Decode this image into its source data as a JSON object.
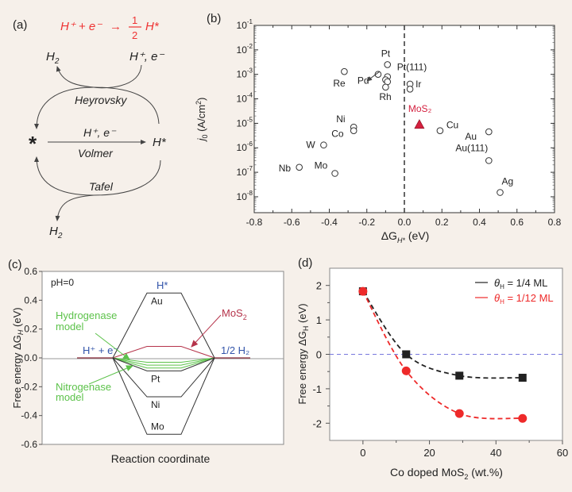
{
  "panel_labels": {
    "a": "(a)",
    "b": "(b)",
    "c": "(c)",
    "d": "(d)"
  },
  "panel_a": {
    "equation_left": "H⁺ + e⁻",
    "equation_arrow": "→",
    "equation_num": "1",
    "equation_den": "2",
    "equation_right": "H*",
    "h2_top": "H",
    "h2_top_sub": "2",
    "hplus_top": "H⁺, e⁻",
    "heyrovsky": "Heyrovsky",
    "star": "*",
    "volmer_reactant": "H⁺, e⁻",
    "volmer": "Volmer",
    "h_star": "H*",
    "tafel": "Tafel",
    "h2_bottom": "H",
    "h2_bottom_sub": "2",
    "colors": {
      "equation": "#ee3333",
      "lines": "#444444"
    }
  },
  "chart_data": [
    {
      "id": "b",
      "type": "scatter",
      "title": "",
      "xlabel": "ΔG_H* (eV)",
      "ylabel": "j0 (A/cm²)",
      "xlim": [
        -0.8,
        0.8
      ],
      "ylim_log10": [
        -8.65,
        -1
      ],
      "yscale": "log",
      "xticks": [
        -0.8,
        -0.6,
        -0.4,
        -0.2,
        0.0,
        0.2,
        0.4,
        0.6,
        0.8
      ],
      "xtick_labels": [
        "-0.8",
        "-0.6",
        "-0.4",
        "-0.2",
        "0.0",
        "0.2",
        "0.4",
        "0.6",
        "0.8"
      ],
      "yticks_exp": [
        -1,
        -2,
        -3,
        -4,
        -5,
        -6,
        -7,
        -8
      ],
      "vline_x": 0,
      "points": [
        {
          "label": "Nb",
          "x": -0.56,
          "y": 1.6e-07
        },
        {
          "label": "W",
          "x": -0.43,
          "y": 1.3e-06
        },
        {
          "label": "Mo",
          "x": -0.37,
          "y": 9e-08
        },
        {
          "label": "Re",
          "x": -0.32,
          "y": 0.0013
        },
        {
          "label": "Ni",
          "x": -0.27,
          "y": 7e-06
        },
        {
          "label": "Co",
          "x": -0.27,
          "y": 5e-06
        },
        {
          "label": "Pd",
          "x": -0.14,
          "y": 0.001
        },
        {
          "label": "Pt",
          "x": -0.09,
          "y": 0.0025
        },
        {
          "label": "Pt(111)",
          "x": -0.09,
          "y": 0.0008
        },
        {
          "label": "",
          "x": -0.1,
          "y": 0.0006
        },
        {
          "label": "",
          "x": -0.09,
          "y": 0.0005
        },
        {
          "label": "Rh",
          "x": -0.1,
          "y": 0.0003
        },
        {
          "label": "Ir",
          "x": 0.03,
          "y": 0.0004
        },
        {
          "label": "",
          "x": 0.03,
          "y": 0.00025
        },
        {
          "label": "Cu",
          "x": 0.19,
          "y": 5e-06
        },
        {
          "label": "Au",
          "x": 0.45,
          "y": 4.5e-06
        },
        {
          "label": "Au(111)",
          "x": 0.45,
          "y": 3e-07
        },
        {
          "label": "Ag",
          "x": 0.51,
          "y": 1.5e-08
        }
      ],
      "highlight": {
        "label": "MoS₂",
        "x": 0.08,
        "y": 9e-06,
        "marker": "triangle",
        "color": "#d4203f"
      }
    },
    {
      "id": "c",
      "type": "line",
      "title": "",
      "xlabel": "Reaction coordinate",
      "ylabel": "Free energy ΔG_H (eV)",
      "ylim": [
        -0.6,
        0.6
      ],
      "yticks": [
        0.6,
        0.4,
        0.2,
        0.0,
        -0.2,
        -0.4,
        -0.6
      ],
      "ytick_labels": [
        "0.6",
        "0.4",
        "0.2",
        "0.0",
        "-0.2",
        "-0.4",
        "-0.6"
      ],
      "annotation_ph": "pH=0",
      "state_labels": {
        "initial": "H⁺ + e⁻",
        "intermediate": "H*",
        "final": "1/2 H₂"
      },
      "series": [
        {
          "name": "Au",
          "value": 0.45,
          "color": "#333333"
        },
        {
          "name": "MoS₂",
          "value": 0.08,
          "color": "#b5334a"
        },
        {
          "name": "Hydrogenase model",
          "value": -0.03,
          "color": "#5cc24a"
        },
        {
          "name": "green-2",
          "value": -0.05,
          "color": "#5cc24a"
        },
        {
          "name": "Nitrogenase model",
          "value": -0.07,
          "color": "#5cc24a"
        },
        {
          "name": "Pt",
          "value": -0.09,
          "color": "#333333"
        },
        {
          "name": "Ni",
          "value": -0.27,
          "color": "#333333"
        },
        {
          "name": "Mo",
          "value": -0.53,
          "color": "#333333"
        }
      ],
      "annotations": {
        "hydrogenase_l1": "Hydrogenase",
        "hydrogenase_l2": "model",
        "nitrogenase_l1": "Nitrogenase",
        "nitrogenase_l2": "model",
        "mos2": "MoS",
        "mos2_sub": "2"
      },
      "colors": {
        "state_label": "#3355aa",
        "green": "#5cc24a",
        "mos2": "#b5334a"
      }
    },
    {
      "id": "d",
      "type": "line",
      "title": "",
      "xlabel": "Co doped MoS₂ (wt.%)",
      "ylabel": "Free energy ΔG_H (eV)",
      "xlim": [
        -10,
        60
      ],
      "ylim": [
        -2.5,
        2.5
      ],
      "xticks": [
        0,
        20,
        40,
        60
      ],
      "xtick_labels": [
        "0",
        "20",
        "40",
        "60"
      ],
      "yticks": [
        2,
        1,
        0,
        -1,
        -2
      ],
      "ytick_labels": [
        "2",
        "1",
        "0",
        "-1",
        "-2"
      ],
      "hline_y": 0,
      "legend_position": "top-right",
      "series": [
        {
          "name": "θH = 1/4 ML",
          "legend_theta": "θ",
          "legend_sub": "H",
          "legend_rest": " = 1/4 ML",
          "marker": "square",
          "color": "#222222",
          "x": [
            0,
            13,
            29,
            48
          ],
          "y": [
            1.83,
            0.0,
            -0.62,
            -0.68
          ]
        },
        {
          "name": "θH = 1/12 ML",
          "legend_theta": "θ",
          "legend_sub": "H",
          "legend_rest": " = 1/12 ML",
          "marker": "circle",
          "color": "#ee2a2a",
          "x": [
            0,
            13,
            29,
            48
          ],
          "y": [
            1.83,
            -0.48,
            -1.72,
            -1.86
          ]
        }
      ]
    }
  ]
}
